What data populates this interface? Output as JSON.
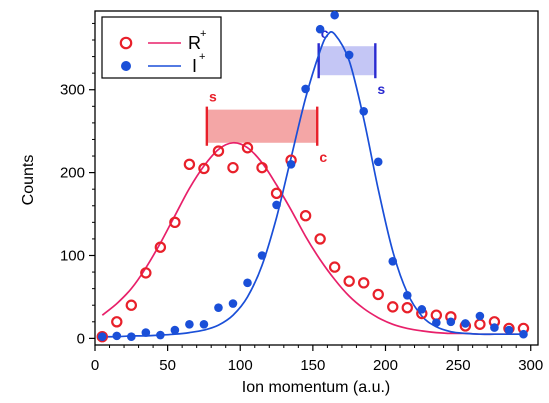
{
  "chart_data": {
    "type": "scatter",
    "title": "",
    "xlabel": "Ion momentum (a.u.)",
    "ylabel": "Counts",
    "xlim": [
      0,
      305
    ],
    "ylim": [
      -8,
      395
    ],
    "x_ticks": [
      0,
      50,
      100,
      150,
      200,
      250,
      300
    ],
    "y_ticks": [
      0,
      100,
      200,
      300
    ],
    "grid": false,
    "legend_position": "top-left",
    "series": [
      {
        "name": "R",
        "name_superscript": "+",
        "color": "#e8202a",
        "fit_color": "#e8206a",
        "marker": "open-circle",
        "x": [
          5,
          15,
          25,
          35,
          45,
          55,
          65,
          75,
          85,
          95,
          105,
          115,
          125,
          135,
          145,
          155,
          165,
          175,
          185,
          195,
          205,
          215,
          225,
          235,
          245,
          255,
          265,
          275,
          285,
          295
        ],
        "y": [
          2,
          20,
          40,
          79,
          110,
          140,
          210,
          205,
          226,
          206,
          230,
          206,
          175,
          215,
          148,
          120,
          86,
          69,
          67,
          53,
          38,
          37,
          30,
          28,
          26,
          15,
          17,
          20,
          12,
          12
        ],
        "fit": {
          "x": [
            5,
            15,
            25,
            35,
            45,
            55,
            65,
            75,
            85,
            95,
            105,
            115,
            125,
            135,
            145,
            155,
            165,
            175,
            185,
            195,
            205,
            215,
            225,
            235,
            245,
            255,
            265,
            275,
            285,
            295
          ],
          "y": [
            28,
            42,
            60,
            85,
            115,
            148,
            181,
            208,
            228,
            236,
            230,
            212,
            185,
            155,
            123,
            95,
            71,
            51,
            36,
            25,
            17,
            12,
            9,
            7,
            6,
            6,
            5,
            5,
            5,
            5
          ]
        }
      },
      {
        "name": "I",
        "name_superscript": "+",
        "color": "#1a4fd8",
        "fit_color": "#1a4fd8",
        "marker": "filled-circle",
        "x": [
          5,
          15,
          25,
          35,
          45,
          55,
          65,
          75,
          85,
          95,
          105,
          115,
          125,
          135,
          145,
          155,
          165,
          175,
          185,
          195,
          205,
          215,
          225,
          235,
          245,
          255,
          265,
          275,
          285,
          295
        ],
        "y": [
          2,
          3,
          2,
          7,
          4,
          10,
          17,
          17,
          37,
          42,
          67,
          100,
          161,
          210,
          301,
          373,
          390,
          342,
          274,
          213,
          93,
          52,
          35,
          19,
          20,
          18,
          27,
          13,
          10,
          5
        ],
        "fit": {
          "x": [
            5,
            15,
            25,
            35,
            45,
            55,
            65,
            75,
            85,
            95,
            105,
            115,
            125,
            135,
            145,
            155,
            160,
            165,
            175,
            185,
            195,
            205,
            215,
            225,
            235,
            245,
            255,
            265,
            275,
            285,
            295
          ],
          "y": [
            2,
            2,
            3,
            3,
            4,
            5,
            7,
            10,
            16,
            28,
            50,
            88,
            146,
            218,
            290,
            347,
            366,
            367,
            335,
            265,
            180,
            105,
            55,
            27,
            14,
            8,
            6,
            5,
            5,
            5,
            5
          ]
        }
      }
    ],
    "range_bars": [
      {
        "x_start": 77,
        "x_end": 153,
        "y": 256,
        "height": 40,
        "color": "#f4a6a6",
        "edge_color": "#e8202a",
        "start_label": "s",
        "end_label": "c"
      },
      {
        "x_start": 154,
        "x_end": 193,
        "y": 335,
        "height": 35,
        "color": "#c4c6f5",
        "edge_color": "#2a2ad0",
        "start_label": "c",
        "end_label": "s"
      }
    ]
  }
}
